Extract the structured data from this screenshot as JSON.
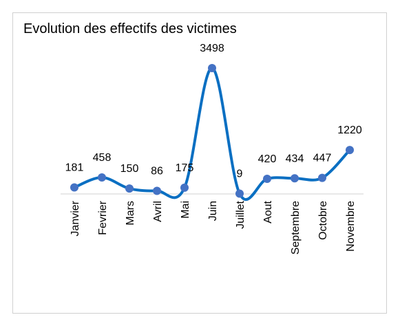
{
  "chart_data": {
    "type": "line",
    "title": "Evolution des effectifs des victimes",
    "categories": [
      "Janvier",
      "Fevrier",
      "Mars",
      "Avril",
      "Mai",
      "Juin",
      "Juillet",
      "Aout",
      "Septembre",
      "Octobre",
      "Novembre"
    ],
    "values": [
      181,
      458,
      150,
      86,
      175,
      3498,
      9,
      420,
      434,
      447,
      1220
    ],
    "color": "#0a6fc2",
    "marker_color": "#4472c4",
    "smooth": true
  }
}
